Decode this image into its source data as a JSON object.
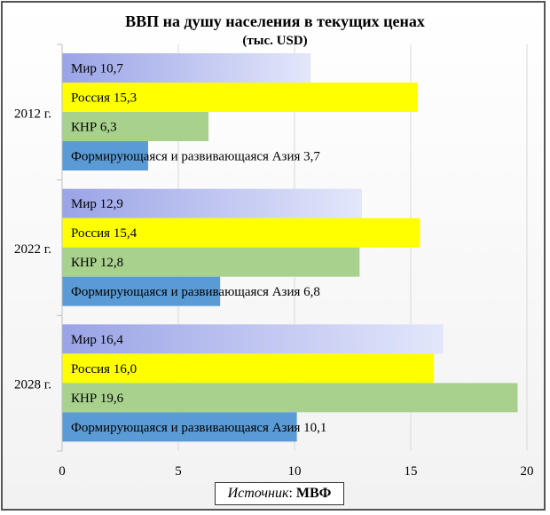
{
  "chart_data": {
    "type": "bar",
    "orientation": "horizontal",
    "title": "ВВП на душу населения в текущих ценах",
    "subtitle": "(тыс. USD)",
    "categories": [
      "2012 г.",
      "2022 г.",
      "2028 г."
    ],
    "series": [
      {
        "name": "Мир",
        "values": [
          10.7,
          12.9,
          16.4
        ],
        "labels": [
          "Мир 10,7",
          "Мир 12,9",
          "Мир 16,4"
        ],
        "color": "#c5cbf3"
      },
      {
        "name": "Россия",
        "values": [
          15.3,
          15.4,
          16.0
        ],
        "labels": [
          "Россия 15,3",
          "Россия 15,4",
          "Россия 16,0"
        ],
        "color": "#ffff00"
      },
      {
        "name": "КНР",
        "values": [
          6.3,
          12.8,
          19.6
        ],
        "labels": [
          "КНР 6,3",
          "КНР 12,8",
          "КНР 19,6"
        ],
        "color": "#a9d18e"
      },
      {
        "name": "Формирующаяся и развивающаяся Азия",
        "values": [
          3.7,
          6.8,
          10.1
        ],
        "labels": [
          "Формирующаяся и развивающаяся Азия 3,7",
          "Формирующаяся и развивающаяся Азия 6,8",
          "Формирующаяся и развивающаяся Азия 10,1"
        ],
        "color": "#5b9bd5"
      }
    ],
    "xlim": [
      0,
      20
    ],
    "xticks": [
      "0",
      "5",
      "10",
      "15",
      "20"
    ],
    "grid": "vertical",
    "legend": "none"
  },
  "source": {
    "label": "Источник",
    "separator": ": ",
    "value": "МВФ"
  }
}
